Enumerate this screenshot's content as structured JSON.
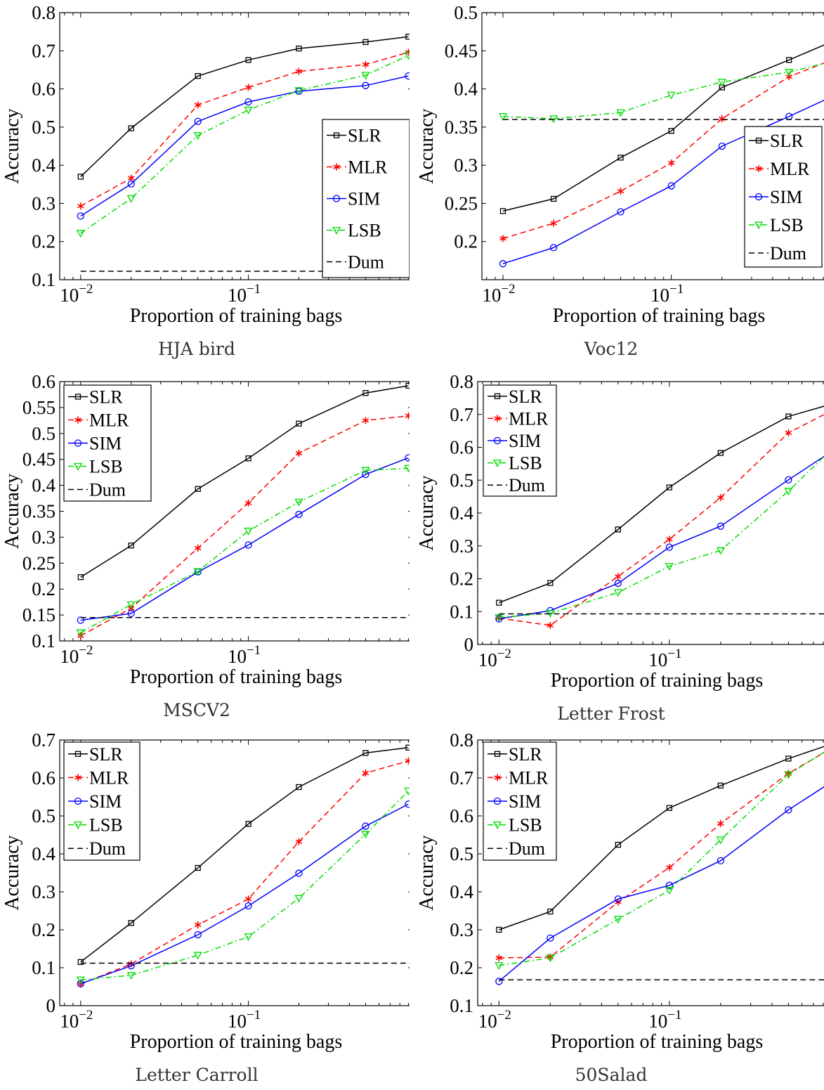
{
  "chart_data": [
    {
      "type": "line",
      "caption": "HJA bird",
      "xlabel": "Proportion of training bags",
      "ylabel": "Accuracy",
      "xscale": "log",
      "x": [
        0.01,
        0.02,
        0.05,
        0.1,
        0.2,
        0.5,
        0.9
      ],
      "xlim": [
        0.0075,
        0.95
      ],
      "ylim": [
        0.1,
        0.8
      ],
      "yticks": [
        0.1,
        0.2,
        0.3,
        0.4,
        0.5,
        0.6,
        0.7,
        0.8
      ],
      "ytick_labels": [
        "0.1",
        "0.2",
        "0.3",
        "0.4",
        "0.5",
        "0.6",
        "0.7",
        "0.8"
      ],
      "xticks": [
        0.01,
        0.1
      ],
      "xtick_base": [
        "10",
        "10"
      ],
      "xtick_exp": [
        "−2",
        "−1"
      ],
      "legend_position": "bottom-right",
      "series": [
        {
          "name": "SLR",
          "values": [
            0.37,
            0.497,
            0.634,
            0.676,
            0.706,
            0.723,
            0.737
          ]
        },
        {
          "name": "MLR",
          "values": [
            0.293,
            0.366,
            0.558,
            0.604,
            0.646,
            0.664,
            0.696
          ]
        },
        {
          "name": "SIM",
          "values": [
            0.267,
            0.351,
            0.515,
            0.566,
            0.594,
            0.609,
            0.634
          ]
        },
        {
          "name": "LSB",
          "values": [
            0.222,
            0.313,
            0.478,
            0.545,
            0.596,
            0.636,
            0.688
          ]
        },
        {
          "name": "Dum",
          "values": [
            0.122,
            0.122,
            0.122,
            0.122,
            0.122,
            0.122,
            0.122
          ]
        }
      ]
    },
    {
      "type": "line",
      "caption": "Voc12",
      "xlabel": "Proportion of training bags",
      "ylabel": "Accuracy",
      "xscale": "log",
      "x": [
        0.01,
        0.02,
        0.05,
        0.1,
        0.2,
        0.5,
        0.9
      ],
      "xlim": [
        0.0075,
        0.95
      ],
      "ylim": [
        0.15,
        0.5
      ],
      "yticks": [
        0.2,
        0.25,
        0.3,
        0.35,
        0.4,
        0.45,
        0.5
      ],
      "ytick_labels": [
        "0.2",
        "0.25",
        "0.3",
        "0.35",
        "0.4",
        "0.45",
        "0.5"
      ],
      "xticks": [
        0.01,
        0.1
      ],
      "xtick_base": [
        "10",
        "10"
      ],
      "xtick_exp": [
        "−2",
        "−1"
      ],
      "legend_position": "bottom-right",
      "series": [
        {
          "name": "SLR",
          "values": [
            0.24,
            0.256,
            0.31,
            0.345,
            0.402,
            0.438,
            0.462
          ]
        },
        {
          "name": "MLR",
          "values": [
            0.204,
            0.224,
            0.266,
            0.303,
            0.361,
            0.416,
            0.438
          ]
        },
        {
          "name": "SIM",
          "values": [
            0.171,
            0.192,
            0.239,
            0.273,
            0.325,
            0.364,
            0.39
          ]
        },
        {
          "name": "LSB",
          "values": [
            0.364,
            0.361,
            0.369,
            0.392,
            0.409,
            0.422,
            0.436
          ]
        },
        {
          "name": "Dum",
          "values": [
            0.36,
            0.36,
            0.36,
            0.36,
            0.36,
            0.36,
            0.36
          ]
        }
      ]
    },
    {
      "type": "line",
      "caption": "MSCV2",
      "xlabel": "Proportion of training bags",
      "ylabel": "Accuracy",
      "xscale": "log",
      "x": [
        0.01,
        0.02,
        0.05,
        0.1,
        0.2,
        0.5,
        0.9
      ],
      "xlim": [
        0.0075,
        0.95
      ],
      "ylim": [
        0.1,
        0.6
      ],
      "yticks": [
        0.1,
        0.15,
        0.2,
        0.25,
        0.3,
        0.35,
        0.4,
        0.45,
        0.5,
        0.55,
        0.6
      ],
      "ytick_labels": [
        "0.1",
        "0.15",
        "0.2",
        "0.25",
        "0.3",
        "0.35",
        "0.4",
        "0.45",
        "0.5",
        "0.55",
        "0.6"
      ],
      "xticks": [
        0.01,
        0.1
      ],
      "xtick_base": [
        "10",
        "10"
      ],
      "xtick_exp": [
        "−2",
        "−1"
      ],
      "legend_position": "top-left",
      "series": [
        {
          "name": "SLR",
          "values": [
            0.223,
            0.284,
            0.393,
            0.452,
            0.519,
            0.578,
            0.592
          ]
        },
        {
          "name": "MLR",
          "values": [
            0.11,
            0.163,
            0.279,
            0.366,
            0.462,
            0.525,
            0.534
          ]
        },
        {
          "name": "SIM",
          "values": [
            0.14,
            0.153,
            0.233,
            0.285,
            0.344,
            0.421,
            0.453
          ]
        },
        {
          "name": "LSB",
          "values": [
            0.116,
            0.17,
            0.234,
            0.312,
            0.368,
            0.429,
            0.433
          ]
        },
        {
          "name": "Dum",
          "values": [
            0.145,
            0.145,
            0.145,
            0.145,
            0.145,
            0.145,
            0.145
          ]
        }
      ]
    },
    {
      "type": "line",
      "caption": "Letter Frost",
      "xlabel": "Proportion of training bags",
      "ylabel": "Accuracy",
      "xscale": "log",
      "x": [
        0.01,
        0.02,
        0.05,
        0.1,
        0.2,
        0.5,
        0.9
      ],
      "xlim": [
        0.0075,
        0.95
      ],
      "ylim": [
        0,
        0.8
      ],
      "yticks": [
        0,
        0.1,
        0.2,
        0.3,
        0.4,
        0.5,
        0.6,
        0.7,
        0.8
      ],
      "ytick_labels": [
        "0",
        "0.1",
        "0.2",
        "0.3",
        "0.4",
        "0.5",
        "0.6",
        "0.7",
        "0.8"
      ],
      "xticks": [
        0.01,
        0.1
      ],
      "xtick_base": [
        "10",
        "10"
      ],
      "xtick_exp": [
        "−2",
        "−1"
      ],
      "legend_position": "top-left",
      "series": [
        {
          "name": "SLR",
          "values": [
            0.127,
            0.187,
            0.35,
            0.478,
            0.583,
            0.694,
            0.732
          ]
        },
        {
          "name": "MLR",
          "values": [
            0.08,
            0.058,
            0.207,
            0.32,
            0.447,
            0.644,
            0.712
          ]
        },
        {
          "name": "SIM",
          "values": [
            0.078,
            0.103,
            0.186,
            0.296,
            0.36,
            0.501,
            0.588
          ]
        },
        {
          "name": "LSB",
          "values": [
            0.082,
            0.095,
            0.158,
            0.238,
            0.286,
            0.467,
            0.595
          ]
        },
        {
          "name": "Dum",
          "values": [
            0.093,
            0.093,
            0.093,
            0.093,
            0.093,
            0.093,
            0.093
          ]
        }
      ]
    },
    {
      "type": "line",
      "caption": "Letter Carroll",
      "xlabel": "Proportion of training bags",
      "ylabel": "Accuracy",
      "xscale": "log",
      "x": [
        0.01,
        0.02,
        0.05,
        0.1,
        0.2,
        0.5,
        0.9
      ],
      "xlim": [
        0.0075,
        0.95
      ],
      "ylim": [
        0,
        0.7
      ],
      "yticks": [
        0,
        0.1,
        0.2,
        0.3,
        0.4,
        0.5,
        0.6,
        0.7
      ],
      "ytick_labels": [
        "0",
        "0.1",
        "0.2",
        "0.3",
        "0.4",
        "0.5",
        "0.6",
        "0.7"
      ],
      "xticks": [
        0.01,
        0.1
      ],
      "xtick_base": [
        "10",
        "10"
      ],
      "xtick_exp": [
        "−2",
        "−1"
      ],
      "legend_position": "top-left",
      "series": [
        {
          "name": "SLR",
          "values": [
            0.115,
            0.218,
            0.363,
            0.479,
            0.576,
            0.666,
            0.68
          ]
        },
        {
          "name": "MLR",
          "values": [
            0.057,
            0.11,
            0.213,
            0.281,
            0.432,
            0.613,
            0.645
          ]
        },
        {
          "name": "SIM",
          "values": [
            0.058,
            0.105,
            0.187,
            0.263,
            0.349,
            0.473,
            0.531
          ]
        },
        {
          "name": "LSB",
          "values": [
            0.068,
            0.08,
            0.133,
            0.182,
            0.283,
            0.452,
            0.566
          ]
        },
        {
          "name": "Dum",
          "values": [
            0.112,
            0.112,
            0.112,
            0.112,
            0.112,
            0.112,
            0.112
          ]
        }
      ]
    },
    {
      "type": "line",
      "caption": "50Salad",
      "xlabel": "Proportion of training bags",
      "ylabel": "Accuracy",
      "xscale": "log",
      "x": [
        0.01,
        0.02,
        0.05,
        0.1,
        0.2,
        0.5,
        0.9
      ],
      "xlim": [
        0.0075,
        0.95
      ],
      "ylim": [
        0.1,
        0.8
      ],
      "yticks": [
        0.1,
        0.2,
        0.3,
        0.4,
        0.5,
        0.6,
        0.7,
        0.8
      ],
      "ytick_labels": [
        "0.1",
        "0.2",
        "0.3",
        "0.4",
        "0.5",
        "0.6",
        "0.7",
        "0.8"
      ],
      "xticks": [
        0.01,
        0.1
      ],
      "xtick_base": [
        "10",
        "10"
      ],
      "xtick_exp": [
        "−2",
        "−1"
      ],
      "legend_position": "top-left",
      "series": [
        {
          "name": "SLR",
          "values": [
            0.3,
            0.348,
            0.524,
            0.621,
            0.68,
            0.751,
            0.79
          ]
        },
        {
          "name": "MLR",
          "values": [
            0.226,
            0.228,
            0.373,
            0.464,
            0.58,
            0.712,
            0.779
          ]
        },
        {
          "name": "SIM",
          "values": [
            0.164,
            0.278,
            0.381,
            0.417,
            0.482,
            0.616,
            0.69
          ]
        },
        {
          "name": "LSB",
          "values": [
            0.206,
            0.226,
            0.328,
            0.404,
            0.537,
            0.709,
            0.781
          ]
        },
        {
          "name": "Dum",
          "values": [
            0.168,
            0.168,
            0.168,
            0.168,
            0.168,
            0.168,
            0.168
          ]
        }
      ]
    }
  ],
  "series_style": {
    "SLR": {
      "color": "#000000",
      "dash": "solid",
      "marker": "square"
    },
    "MLR": {
      "color": "#ff0000",
      "dash": "dashed",
      "marker": "asterisk"
    },
    "SIM": {
      "color": "#0000ff",
      "dash": "solid",
      "marker": "circle"
    },
    "LSB": {
      "color": "#00dd00",
      "dash": "dashdot",
      "marker": "triangle-down"
    },
    "Dum": {
      "color": "#000000",
      "dash": "dashed",
      "marker": "none"
    }
  }
}
